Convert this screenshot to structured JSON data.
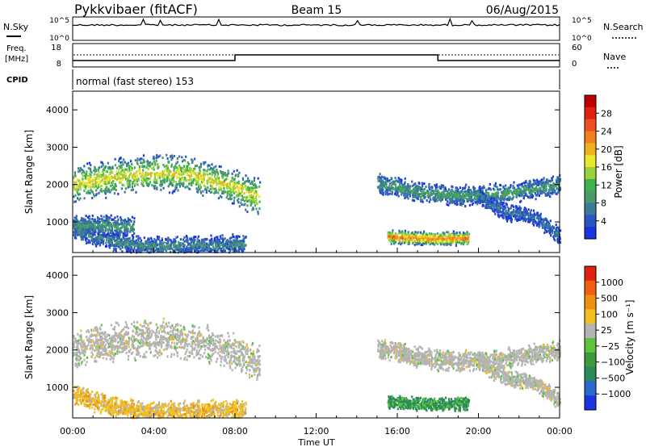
{
  "header": {
    "station": "Pykkvibaer (fitACF)",
    "beam": "Beam 15",
    "date": "06/Aug/2015"
  },
  "noise_panel": {
    "left_label": "N.Sky",
    "right_label": "N.Search",
    "left_ticks": [
      "10^5",
      "10^0"
    ],
    "right_ticks": [
      "10^5",
      "10^0"
    ]
  },
  "freq_panel": {
    "left_label_line1": "Freq.",
    "left_label_line2": "[MHz]",
    "right_label": "Nave",
    "left_ticks": [
      "18",
      "8"
    ],
    "right_ticks": [
      "60",
      "0"
    ],
    "freq_steps": [
      {
        "start_hour": 0.0,
        "end_hour": 8.0,
        "value": 0.25
      },
      {
        "start_hour": 8.0,
        "end_hour": 18.0,
        "value": 0.5
      },
      {
        "start_hour": 18.0,
        "end_hour": 24.0,
        "value": 0.25
      }
    ]
  },
  "cpid": {
    "label": "CPID",
    "mode": "normal (fast stereo) 153"
  },
  "chart_data": [
    {
      "type": "heatmap",
      "panel": "power",
      "ylabel": "Slant Range [km]",
      "xlabel": "Time UT",
      "xlim": [
        0,
        24
      ],
      "ylim": [
        180,
        4500
      ],
      "x_ticks": [
        "00:00",
        "04:00",
        "08:00",
        "12:00",
        "16:00",
        "20:00",
        "00:00"
      ],
      "y_ticks": [
        1000,
        2000,
        3000,
        4000
      ],
      "colorbar": {
        "label": "Power [dB]",
        "range": [
          0,
          32
        ],
        "ticks": [
          4,
          8,
          12,
          16,
          20,
          24,
          28
        ],
        "colors": [
          "#1a35e0",
          "#2a56c4",
          "#3a7a9a",
          "#4b9a6a",
          "#3cb44b",
          "#9bd23c",
          "#e8e830",
          "#f0b020",
          "#f08020",
          "#f05020",
          "#e02010",
          "#c00000"
        ]
      },
      "scatter_bands": [
        {
          "t0": 0.0,
          "t1": 9.2,
          "r_start": 2000,
          "r_end": 1650,
          "r_peak_hour": 4.5,
          "r_peak": 2300,
          "width": 550,
          "level": 18
        },
        {
          "t0": 0.0,
          "t1": 8.5,
          "r_start": 800,
          "r_end": 400,
          "r_peak_hour": 4.0,
          "r_peak": 350,
          "width": 300,
          "level": 8
        },
        {
          "t0": 0.0,
          "t1": 3.0,
          "r_start": 900,
          "r_end": 850,
          "r_peak_hour": 1.5,
          "r_peak": 900,
          "width": 300,
          "level": 10
        },
        {
          "t0": 15.0,
          "t1": 24.0,
          "r_start": 2050,
          "r_end": 2000,
          "r_peak_hour": 19.0,
          "r_peak": 1700,
          "width": 300,
          "level": 10
        },
        {
          "t0": 15.5,
          "t1": 19.5,
          "r_start": 600,
          "r_end": 550,
          "r_peak_hour": 18.0,
          "r_peak": 550,
          "width": 200,
          "level": 24
        },
        {
          "t0": 20.0,
          "t1": 24.0,
          "r_start": 1700,
          "r_end": 600,
          "r_peak_hour": 22.0,
          "r_peak": 1200,
          "width": 250,
          "level": 6
        }
      ]
    },
    {
      "type": "heatmap",
      "panel": "velocity",
      "ylabel": "Slant Range [km]",
      "xlabel": "Time UT",
      "xlim": [
        0,
        24
      ],
      "ylim": [
        180,
        4500
      ],
      "x_ticks": [
        "00:00",
        "04:00",
        "08:00",
        "12:00",
        "16:00",
        "20:00",
        "00:00"
      ],
      "y_ticks": [
        1000,
        2000,
        3000,
        4000
      ],
      "colorbar": {
        "label": "Velocity [m s⁻¹]",
        "ticks": [
          "1000",
          "500",
          "100",
          "25",
          "−25",
          "−100",
          "−500",
          "−1000"
        ],
        "colors": [
          "#1a35e0",
          "#2a6ad0",
          "#2a8a5a",
          "#3c9a3c",
          "#5cc43c",
          "#b4b4b4",
          "#f0c020",
          "#f09010",
          "#f06010",
          "#e02010"
        ]
      },
      "scatter_bands": [
        {
          "t0": 0.0,
          "t1": 9.2,
          "r_start": 2000,
          "r_end": 1650,
          "r_peak_hour": 4.5,
          "r_peak": 2300,
          "width": 550,
          "level": 0
        },
        {
          "t0": 0.0,
          "t1": 8.5,
          "r_start": 800,
          "r_end": 400,
          "r_peak_hour": 4.0,
          "r_peak": 350,
          "width": 300,
          "level": 1
        },
        {
          "t0": 15.0,
          "t1": 24.0,
          "r_start": 2050,
          "r_end": 2000,
          "r_peak_hour": 19.0,
          "r_peak": 1700,
          "width": 300,
          "level": 0
        },
        {
          "t0": 15.5,
          "t1": 19.5,
          "r_start": 600,
          "r_end": 550,
          "r_peak_hour": 18.0,
          "r_peak": 550,
          "width": 200,
          "level": -2
        },
        {
          "t0": 20.0,
          "t1": 24.0,
          "r_start": 1700,
          "r_end": 600,
          "r_peak_hour": 22.0,
          "r_peak": 1200,
          "width": 250,
          "level": 0
        }
      ]
    }
  ]
}
